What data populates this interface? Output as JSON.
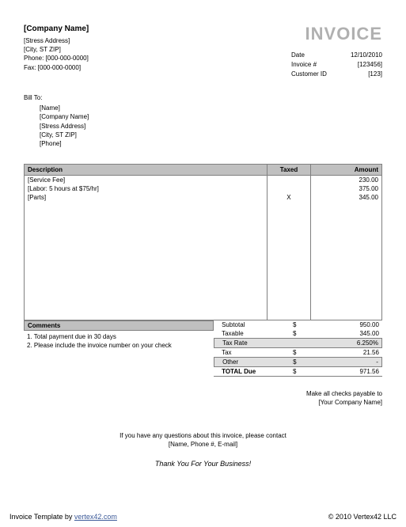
{
  "company": {
    "name": "[Company Name]",
    "address": "[Stress Address]",
    "citystzip": "[City, ST ZIP]",
    "phone": "Phone: [000-000-0000]",
    "fax": "Fax: [000-000-0000]"
  },
  "title": "INVOICE",
  "meta": {
    "date_label": "Date",
    "date_value": "12/10/2010",
    "invnum_label": "Invoice #",
    "invnum_value": "[123456]",
    "custid_label": "Customer ID",
    "custid_value": "[123]"
  },
  "billto": {
    "label": "Bill To:",
    "name": "[Name]",
    "company": "[Company Name]",
    "address": "[Stress Address]",
    "citystzip": "[City, ST ZIP]",
    "phone": "[Phone]"
  },
  "table": {
    "headers": {
      "desc": "Description",
      "taxed": "Taxed",
      "amount": "Amount"
    },
    "rows": [
      {
        "desc": "[Service Fee]",
        "taxed": "",
        "amount": "230.00"
      },
      {
        "desc": "[Labor: 5 hours at $75/hr]",
        "taxed": "",
        "amount": "375.00"
      },
      {
        "desc": "[Parts]",
        "taxed": "X",
        "amount": "345.00"
      }
    ]
  },
  "comments": {
    "header": "Comments",
    "line1": "1. Total payment due in 30 days",
    "line2": "2. Please include the invoice number on your check"
  },
  "totals": {
    "subtotal_label": "Subtotal",
    "subtotal_cur": "$",
    "subtotal_val": "950.00",
    "taxable_label": "Taxable",
    "taxable_cur": "$",
    "taxable_val": "345.00",
    "taxrate_label": "Tax Rate",
    "taxrate_cur": "",
    "taxrate_val": "6.250%",
    "tax_label": "Tax",
    "tax_cur": "$",
    "tax_val": "21.56",
    "other_label": "Other",
    "other_cur": "$",
    "other_val": "-",
    "totaldue_label": "TOTAL Due",
    "totaldue_cur": "$",
    "totaldue_val": "971.56"
  },
  "payable": {
    "line1": "Make all checks payable to",
    "line2": "[Your Company Name]"
  },
  "contact": {
    "line1": "If you have any questions about this invoice, please contact",
    "line2": "[Name, Phone #, E-mail]"
  },
  "thanks": "Thank You For Your Business!",
  "footer": {
    "left_label": "Invoice Template by ",
    "left_link": "vertex42.com",
    "right": "© 2010 Vertex42 LLC"
  },
  "styling": {
    "colors": {
      "title_gray": "#b0b0b0",
      "header_bg": "#c0c0c0",
      "border": "#808080",
      "shade": "#e0e0e0",
      "link": "#3b5998",
      "text": "#000000",
      "background": "#ffffff"
    },
    "fontsize": {
      "body": 8,
      "title": 22,
      "company_name": 10,
      "thanks": 9,
      "footer": 9
    }
  }
}
